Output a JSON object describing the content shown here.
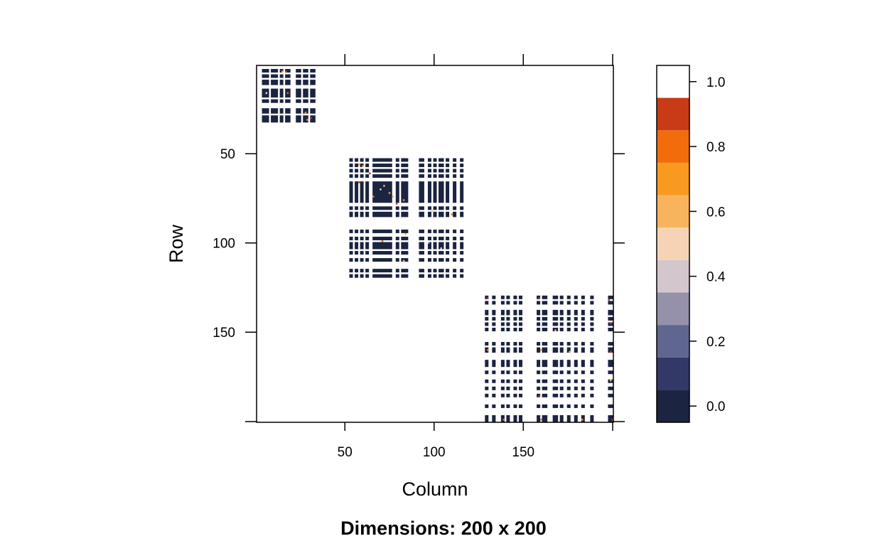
{
  "chart_data": {
    "type": "heatmap",
    "title": "",
    "caption": "Dimensions: 200 x 200",
    "xlabel": "Column",
    "ylabel": "Row",
    "n_rows": 200,
    "n_cols": 200,
    "xlim": [
      1,
      200
    ],
    "ylim": [
      1,
      200
    ],
    "x_ticks": [
      50,
      100,
      150
    ],
    "x_tick_labels": [
      "50",
      "100",
      "150"
    ],
    "y_ticks": [
      50,
      100,
      150
    ],
    "y_tick_labels": [
      "50",
      "100",
      "150"
    ],
    "y_reversed": true,
    "zero_color": "#1b2440",
    "colorkey": {
      "breaks": [
        -0.05,
        0.05,
        0.15,
        0.25,
        0.35,
        0.45,
        0.55,
        0.65,
        0.75,
        0.85,
        0.95,
        1.05
      ],
      "colors": [
        "#1b2440",
        "#323966",
        "#5f6790",
        "#9591aa",
        "#d3c6cc",
        "#f6d3b4",
        "#f8b45c",
        "#f79a1f",
        "#f26c0c",
        "#c83b16"
      ],
      "ticks": [
        0.0,
        0.2,
        0.4,
        0.6,
        0.8,
        1.0
      ],
      "tick_labels": [
        "0.0",
        "0.2",
        "0.4",
        "0.6",
        "0.8",
        "1.0"
      ]
    },
    "col_blocks": [
      [
        4,
        7
      ],
      [
        9,
        12
      ],
      [
        14,
        15
      ],
      [
        17,
        19
      ],
      [
        23,
        25
      ],
      [
        27,
        29
      ],
      [
        31,
        33
      ],
      [
        53,
        54
      ],
      [
        56,
        57
      ],
      [
        59,
        60
      ],
      [
        62,
        63
      ],
      [
        66,
        76
      ],
      [
        79,
        80
      ],
      [
        82,
        85
      ],
      [
        92,
        94
      ],
      [
        97,
        98
      ],
      [
        100,
        101
      ],
      [
        103,
        105
      ],
      [
        107,
        108
      ],
      [
        111,
        112
      ],
      [
        115,
        116
      ],
      [
        129,
        130
      ],
      [
        133,
        134
      ],
      [
        138,
        139
      ],
      [
        141,
        142
      ],
      [
        145,
        146
      ],
      [
        148,
        149
      ],
      [
        158,
        159
      ],
      [
        161,
        163
      ],
      [
        167,
        169
      ],
      [
        171,
        172
      ],
      [
        175,
        176
      ],
      [
        179,
        180
      ],
      [
        183,
        184
      ],
      [
        188,
        189
      ],
      [
        198,
        200
      ]
    ],
    "row_blocks": [
      [
        3,
        4
      ],
      [
        6,
        7
      ],
      [
        9,
        11
      ],
      [
        14,
        18
      ],
      [
        20,
        21
      ],
      [
        25,
        27
      ],
      [
        29,
        32
      ],
      [
        53,
        54
      ],
      [
        56,
        57
      ],
      [
        59,
        60
      ],
      [
        62,
        63
      ],
      [
        66,
        77
      ],
      [
        80,
        81
      ],
      [
        83,
        85
      ],
      [
        93,
        94
      ],
      [
        97,
        98
      ],
      [
        100,
        103
      ],
      [
        105,
        106
      ],
      [
        109,
        110
      ],
      [
        115,
        116
      ],
      [
        118,
        119
      ],
      [
        130,
        131
      ],
      [
        133,
        134
      ],
      [
        138,
        140
      ],
      [
        142,
        143
      ],
      [
        145,
        146
      ],
      [
        148,
        149
      ],
      [
        156,
        157
      ],
      [
        159,
        161
      ],
      [
        166,
        169
      ],
      [
        172,
        173
      ],
      [
        177,
        178
      ],
      [
        181,
        182
      ],
      [
        185,
        186
      ],
      [
        191,
        192
      ],
      [
        197,
        200
      ]
    ],
    "groups": {
      "A": {
        "rows": [
          1,
          37
        ],
        "cols": [
          1,
          36
        ]
      },
      "B": {
        "rows": [
          50,
          125
        ],
        "cols": [
          50,
          122
        ]
      },
      "C": {
        "rows": [
          126,
          200
        ],
        "cols": [
          127,
          200
        ]
      }
    },
    "nonzero_cells": [
      {
        "row": 4,
        "col": 15,
        "value": 0.62
      },
      {
        "row": 4,
        "col": 17,
        "value": 0.85
      },
      {
        "row": 16,
        "col": 18,
        "value": 0.78
      },
      {
        "row": 16,
        "col": 6,
        "value": 0.45
      },
      {
        "row": 27,
        "col": 28,
        "value": 0.7
      },
      {
        "row": 30,
        "col": 31,
        "value": 0.92
      },
      {
        "row": 31,
        "col": 29,
        "value": 0.66
      },
      {
        "row": 56,
        "col": 58,
        "value": 0.56
      },
      {
        "row": 57,
        "col": 60,
        "value": 0.72
      },
      {
        "row": 61,
        "col": 64,
        "value": 0.95
      },
      {
        "row": 66,
        "col": 58,
        "value": 0.88
      },
      {
        "row": 68,
        "col": 72,
        "value": 0.62
      },
      {
        "row": 70,
        "col": 70,
        "value": 0.35
      },
      {
        "row": 72,
        "col": 75,
        "value": 0.74
      },
      {
        "row": 74,
        "col": 66,
        "value": 0.82
      },
      {
        "row": 74,
        "col": 77,
        "value": 0.55
      },
      {
        "row": 76,
        "col": 83,
        "value": 0.68
      },
      {
        "row": 78,
        "col": 79,
        "value": 0.9
      },
      {
        "row": 82,
        "col": 99,
        "value": 0.45
      },
      {
        "row": 84,
        "col": 110,
        "value": 0.8
      },
      {
        "row": 95,
        "col": 84,
        "value": 0.6
      },
      {
        "row": 99,
        "col": 71,
        "value": 0.75
      },
      {
        "row": 100,
        "col": 97,
        "value": 0.3
      },
      {
        "row": 103,
        "col": 104,
        "value": 0.42
      },
      {
        "row": 110,
        "col": 83,
        "value": 0.58
      },
      {
        "row": 131,
        "col": 130,
        "value": 0.93
      },
      {
        "row": 131,
        "col": 159,
        "value": 0.85
      },
      {
        "row": 132,
        "col": 198,
        "value": 0.97
      },
      {
        "row": 145,
        "col": 199,
        "value": 0.88
      },
      {
        "row": 149,
        "col": 168,
        "value": 0.62
      },
      {
        "row": 160,
        "col": 130,
        "value": 0.78
      },
      {
        "row": 160,
        "col": 160,
        "value": 0.66
      },
      {
        "row": 161,
        "col": 176,
        "value": 0.55
      },
      {
        "row": 161,
        "col": 199,
        "value": 0.95
      },
      {
        "row": 177,
        "col": 199,
        "value": 0.58
      },
      {
        "row": 186,
        "col": 159,
        "value": 0.93
      },
      {
        "row": 199,
        "col": 139,
        "value": 0.83
      },
      {
        "row": 199,
        "col": 160,
        "value": 0.75
      },
      {
        "row": 199,
        "col": 183,
        "value": 0.68
      },
      {
        "row": 199,
        "col": 200,
        "value": 0.97
      }
    ]
  }
}
